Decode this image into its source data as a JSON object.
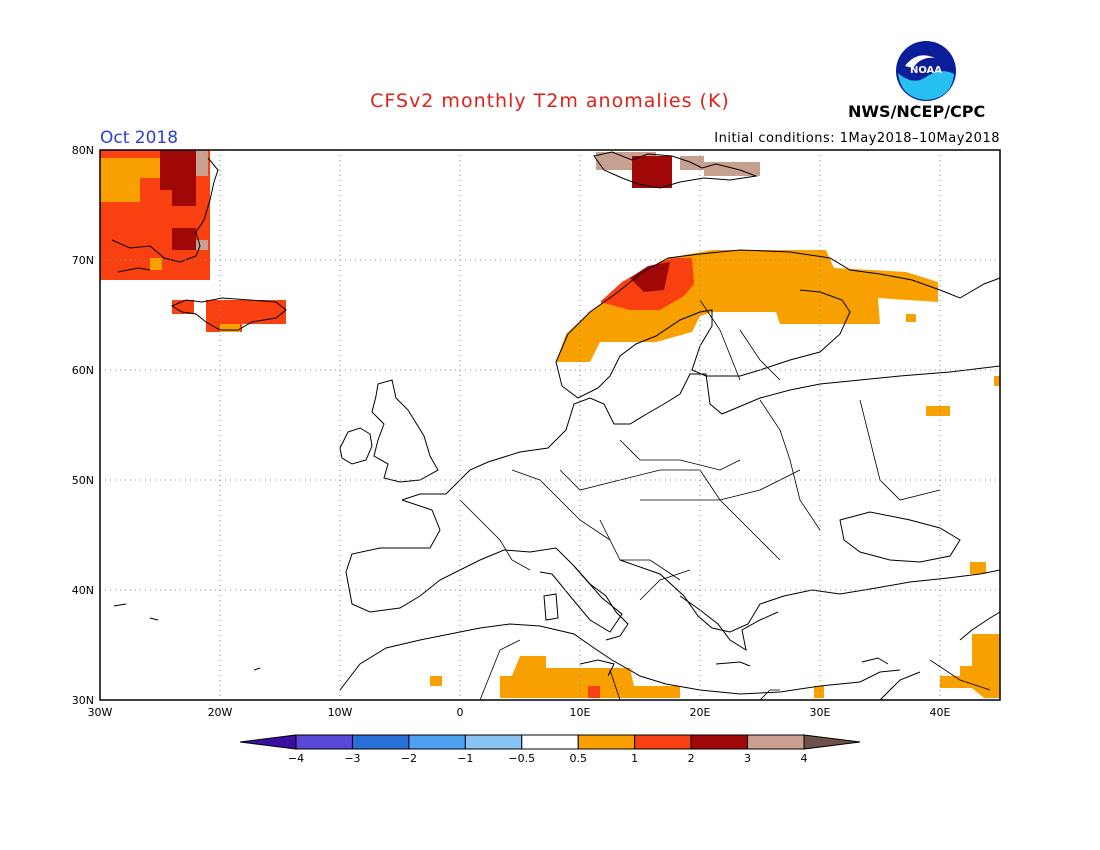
{
  "header": {
    "title": "CFSv2 monthly T2m anomalies (K)",
    "month": "Oct 2018",
    "initial_conditions": "Initial conditions: 1May2018–10May2018",
    "org": "NWS/NCEP/CPC",
    "logo_text": "NOAA"
  },
  "map": {
    "lat_labels": [
      "80N",
      "70N",
      "60N",
      "50N",
      "40N",
      "30N"
    ],
    "lon_labels": [
      "30W",
      "20W",
      "10W",
      "0",
      "10E",
      "20E",
      "30E",
      "40E"
    ]
  },
  "legend": {
    "colors": [
      "#3a10a0",
      "#5a48d8",
      "#2a6ed8",
      "#4ea0f0",
      "#88c4f4",
      "#ffffff",
      "#f8a000",
      "#f84010",
      "#a00808",
      "#c8a090",
      "#70504a"
    ],
    "tick_labels": [
      "−4",
      "−3",
      "−2",
      "−1",
      "−0.5",
      "0.5",
      "1",
      "2",
      "3",
      "4"
    ]
  }
}
